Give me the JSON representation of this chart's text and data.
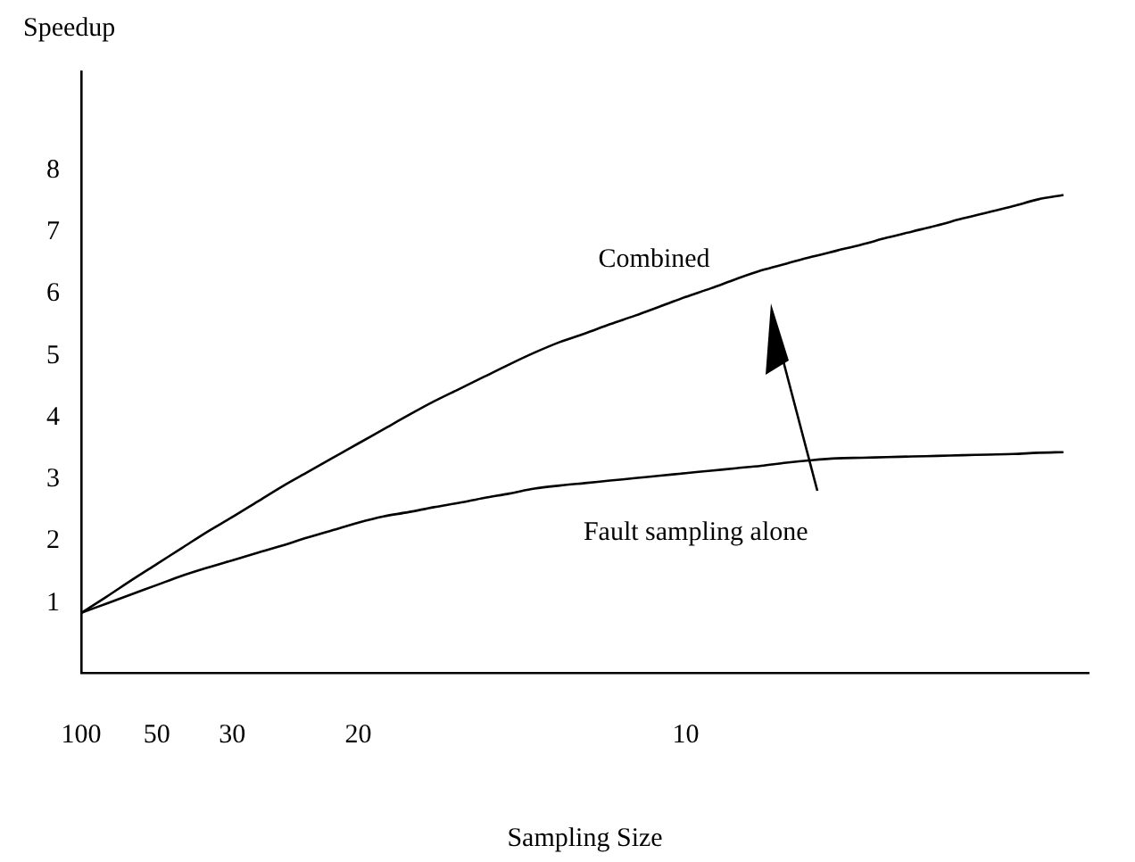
{
  "chart_data": {
    "type": "line",
    "xlabel": "Sampling Size",
    "ylabel": "Speedup",
    "categories": [
      "100",
      null,
      null,
      "50",
      null,
      null,
      "30",
      null,
      null,
      null,
      null,
      "20",
      null,
      null,
      null,
      null,
      null,
      null,
      null,
      null,
      null,
      null,
      null,
      null,
      "10",
      null,
      null,
      null,
      null,
      null,
      null,
      null,
      null,
      null,
      null,
      null,
      null,
      null,
      null,
      null,
      null
    ],
    "ylim": [
      -0.13,
      9.6
    ],
    "yticks": [
      1,
      2,
      3,
      4,
      5,
      6,
      7,
      8
    ],
    "grid": false,
    "legend": false,
    "marker": "none",
    "line_style": "solid",
    "series": [
      {
        "name": "Combined",
        "color": "#000000",
        "values": [
          0.84,
          1.1,
          1.37,
          1.63,
          1.89,
          2.15,
          2.39,
          2.64,
          2.89,
          3.12,
          3.35,
          3.58,
          3.81,
          4.04,
          4.26,
          4.46,
          4.66,
          4.86,
          5.05,
          5.22,
          5.36,
          5.51,
          5.65,
          5.8,
          5.95,
          6.09,
          6.24,
          6.38,
          6.49,
          6.6,
          6.7,
          6.8,
          6.91,
          7.01,
          7.11,
          7.22,
          7.32,
          7.42,
          7.53,
          7.6,
          null
        ]
      },
      {
        "name": "Fault sampling alone",
        "color": "#000000",
        "values": [
          0.84,
          0.99,
          1.14,
          1.29,
          1.44,
          1.57,
          1.69,
          1.81,
          1.93,
          2.06,
          2.18,
          2.3,
          2.4,
          2.47,
          2.55,
          2.62,
          2.7,
          2.77,
          2.85,
          2.9,
          2.94,
          2.98,
          3.02,
          3.06,
          3.1,
          3.14,
          3.18,
          3.22,
          3.27,
          3.31,
          3.34,
          3.35,
          3.36,
          3.37,
          3.38,
          3.39,
          3.4,
          3.41,
          3.43,
          3.44,
          null
        ]
      }
    ]
  }
}
